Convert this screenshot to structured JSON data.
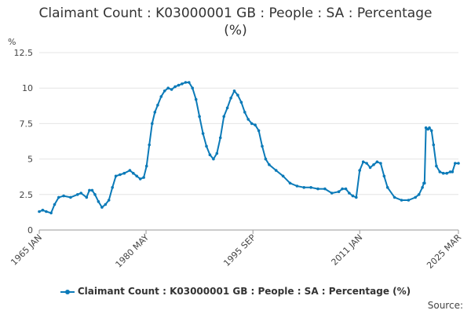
{
  "chart_data": {
    "type": "line",
    "title_line1": "Claimant Count : K03000001 GB : People : SA : Percentage",
    "title_line2": "(%)",
    "ylabel": "%",
    "ylim": [
      0,
      12.5
    ],
    "yticks": [
      0,
      2.5,
      5,
      7.5,
      10,
      12.5
    ],
    "ytick_labels": [
      "0",
      "2.5",
      "5",
      "7.5",
      "10",
      "12.5"
    ],
    "xlim": [
      1965.0,
      2025.17
    ],
    "xticks": [
      1965.0,
      1980.33,
      1995.67,
      2011.0,
      2025.17
    ],
    "xtick_labels": [
      "1965 JAN",
      "1980 MAY",
      "1995 SEP",
      "2011 JAN",
      "2025 MAR"
    ],
    "grid": true,
    "legend_position": "bottom",
    "series": [
      {
        "name": "Claimant Count : K03000001 GB : People : SA : Percentage (%)",
        "color": "#0b7ab8",
        "x": [
          1965.0,
          1965.5,
          1966.0,
          1966.7,
          1967.2,
          1967.8,
          1968.5,
          1969.5,
          1970.5,
          1971.0,
          1971.8,
          1972.2,
          1972.6,
          1973.0,
          1973.5,
          1974.0,
          1974.5,
          1975.0,
          1975.5,
          1976.0,
          1976.6,
          1977.2,
          1978.0,
          1978.5,
          1979.0,
          1979.5,
          1980.0,
          1980.4,
          1980.8,
          1981.2,
          1981.6,
          1982.0,
          1982.5,
          1983.0,
          1983.5,
          1984.0,
          1984.5,
          1985.0,
          1985.5,
          1986.0,
          1986.5,
          1987.0,
          1987.5,
          1988.0,
          1988.5,
          1989.0,
          1989.5,
          1990.0,
          1990.5,
          1991.0,
          1991.5,
          1992.0,
          1992.5,
          1993.0,
          1993.5,
          1994.0,
          1994.5,
          1995.0,
          1995.5,
          1996.0,
          1996.5,
          1997.0,
          1997.5,
          1998.0,
          1999.0,
          2000.0,
          2001.0,
          2002.0,
          2003.0,
          2004.0,
          2005.0,
          2006.0,
          2007.0,
          2008.0,
          2008.5,
          2009.0,
          2009.5,
          2010.0,
          2010.5,
          2011.0,
          2011.5,
          2012.0,
          2012.5,
          2013.0,
          2013.5,
          2014.0,
          2014.5,
          2015.0,
          2016.0,
          2017.0,
          2018.0,
          2019.0,
          2019.5,
          2020.0,
          2020.2,
          2020.3,
          2020.5,
          2020.8,
          2021.0,
          2021.3,
          2021.6,
          2022.0,
          2022.5,
          2023.0,
          2023.5,
          2024.0,
          2024.3,
          2024.7,
          2025.17
        ],
        "y": [
          1.3,
          1.4,
          1.3,
          1.2,
          1.8,
          2.3,
          2.4,
          2.3,
          2.5,
          2.6,
          2.3,
          2.8,
          2.8,
          2.5,
          2.0,
          1.6,
          1.8,
          2.1,
          3.0,
          3.8,
          3.9,
          4.0,
          4.2,
          4.0,
          3.8,
          3.6,
          3.7,
          4.5,
          6.0,
          7.5,
          8.3,
          8.8,
          9.4,
          9.8,
          10.0,
          9.9,
          10.1,
          10.2,
          10.3,
          10.4,
          10.4,
          10.0,
          9.2,
          8.0,
          6.8,
          5.9,
          5.3,
          5.0,
          5.4,
          6.5,
          8.0,
          8.6,
          9.3,
          9.8,
          9.5,
          9.0,
          8.3,
          7.8,
          7.5,
          7.4,
          7.0,
          5.9,
          5.0,
          4.6,
          4.2,
          3.8,
          3.3,
          3.1,
          3.0,
          3.0,
          2.9,
          2.9,
          2.6,
          2.7,
          2.9,
          2.9,
          2.6,
          2.4,
          2.3,
          4.2,
          4.8,
          4.7,
          4.4,
          4.6,
          4.8,
          4.7,
          3.8,
          3.0,
          2.3,
          2.1,
          2.1,
          2.3,
          2.5,
          3.0,
          3.3,
          3.3,
          7.2,
          7.1,
          7.2,
          7.0,
          6.0,
          4.5,
          4.1,
          4.0,
          4.0,
          4.1,
          4.1,
          4.7,
          4.7
        ]
      }
    ]
  },
  "legend": {
    "label": "Claimant Count : K03000001 GB : People : SA : Percentage (%)"
  },
  "source": {
    "label": "Source:"
  }
}
